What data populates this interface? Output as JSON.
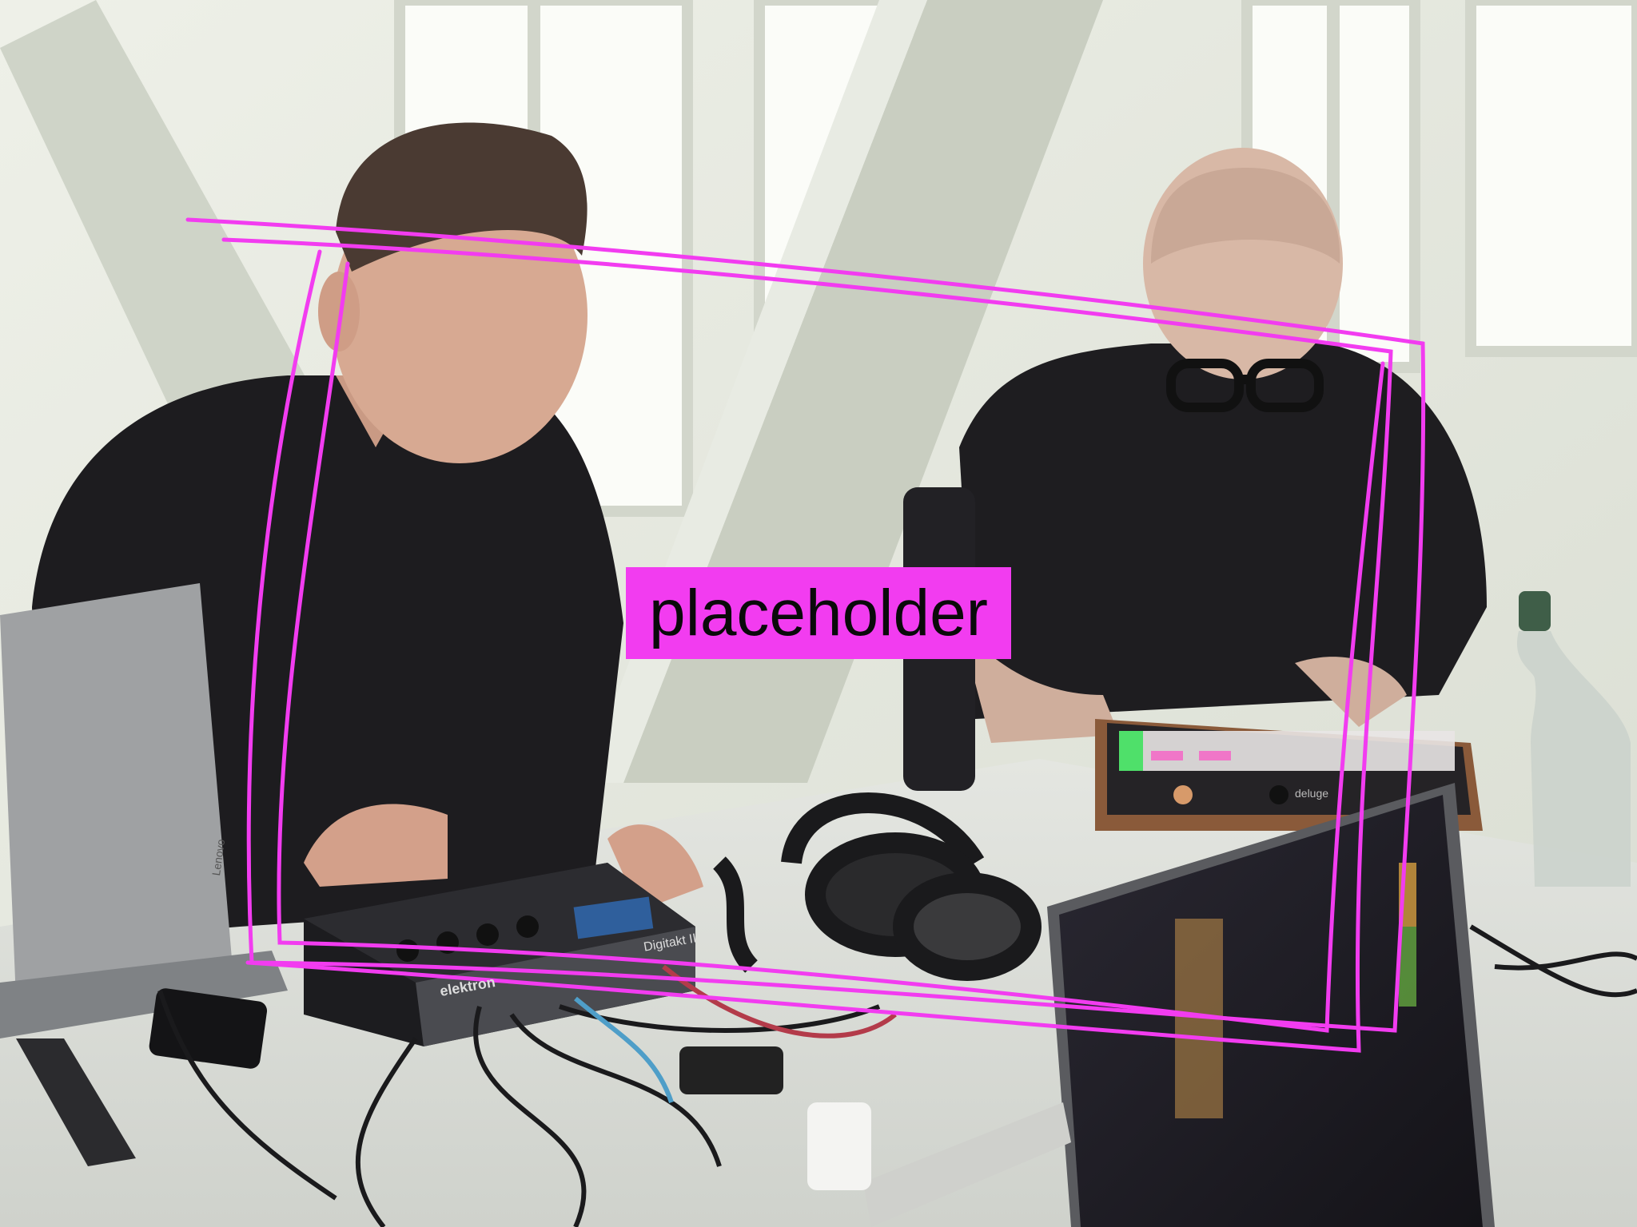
{
  "overlay": {
    "label": "placeholder",
    "accent_color": "#f23cf0"
  },
  "devices": {
    "laptop_left_brand": "Lenovo",
    "sampler_model": "Digitakt II",
    "sampler_brand": "elektron",
    "grid_brand": "deluge"
  }
}
